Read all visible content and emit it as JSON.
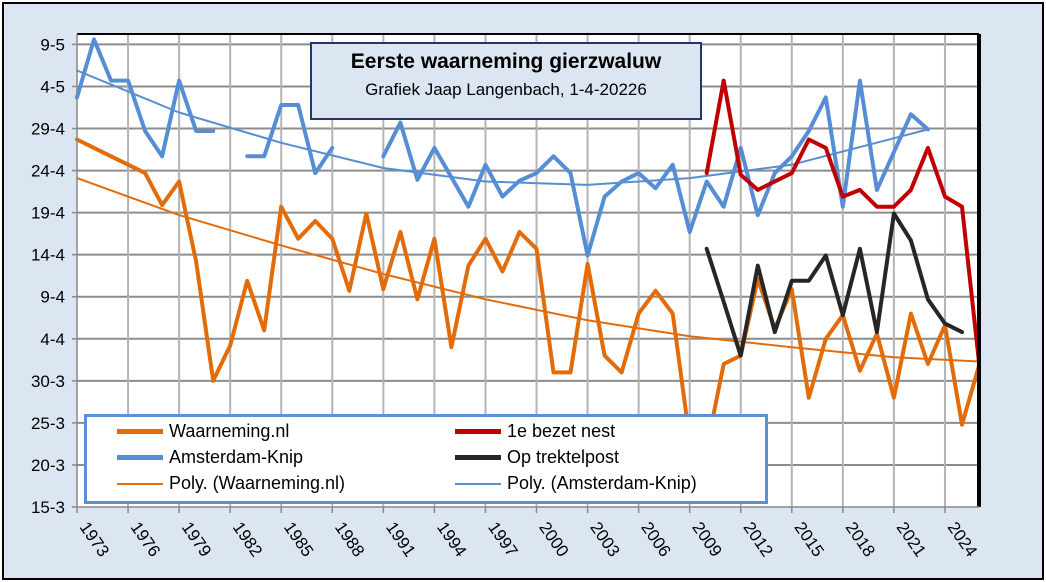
{
  "chart_data": {
    "type": "line",
    "title": "Eerste waarneming gierzwaluw",
    "subtitle": "Grafiek Jaap Langenbach, 1-4-20226",
    "xlabel": "",
    "ylabel": "",
    "y_unit": "days after 15-3",
    "y_tick_labels": [
      "15-3",
      "20-3",
      "25-3",
      "30-3",
      "4-4",
      "9-4",
      "14-4",
      "19-4",
      "24-4",
      "29-4",
      "4-5",
      "9-5"
    ],
    "y_tick_values": [
      0,
      5,
      10,
      15,
      20,
      25,
      30,
      35,
      40,
      45,
      50,
      55
    ],
    "ylim": [
      0,
      56
    ],
    "x_tick_labels": [
      "1973",
      "1976",
      "1979",
      "1982",
      "1985",
      "1988",
      "1991",
      "1994",
      "1997",
      "2000",
      "2003",
      "2006",
      "2009",
      "2012",
      "2015",
      "2018",
      "2021",
      "2024"
    ],
    "x_tick_values": [
      1973,
      1976,
      1979,
      1982,
      1985,
      1988,
      1991,
      1994,
      1997,
      2000,
      2003,
      2006,
      2009,
      2012,
      2015,
      2018,
      2021,
      2024
    ],
    "xlim": [
      1973,
      2026
    ],
    "grid": true,
    "legend_position": "bottom-left",
    "series": [
      {
        "name": "Waarneming.nl",
        "color": "#e36c0a",
        "width": 4,
        "x": [
          1973,
          1974,
          1975,
          1976,
          1977,
          1978,
          1979,
          1980,
          1981,
          1982,
          1983,
          1984,
          1985,
          1986,
          1987,
          1988,
          1989,
          1990,
          1991,
          1992,
          1993,
          1994,
          1995,
          1996,
          1997,
          1998,
          1999,
          2000,
          2001,
          2002,
          2003,
          2004,
          2005,
          2006,
          2007,
          2008,
          2009,
          2010,
          2011,
          2012,
          2013,
          2014,
          2015,
          2016,
          2017,
          2018,
          2019,
          2020,
          2021,
          2022,
          2023,
          2024,
          2025,
          2026
        ],
        "values": [
          43.7,
          42.7,
          41.7,
          40.7,
          39.7,
          35.9,
          38.7,
          29.2,
          15.0,
          19.2,
          26.9,
          21.0,
          35.7,
          31.9,
          34.0,
          31.9,
          25.7,
          34.9,
          25.9,
          32.7,
          24.7,
          31.9,
          19.0,
          28.7,
          31.9,
          28.0,
          32.7,
          30.7,
          16.0,
          16.0,
          28.9,
          18.0,
          16.0,
          23.0,
          25.7,
          23.0,
          8,
          7,
          17.0,
          18.0,
          27.1,
          21.2,
          25.9,
          13.0,
          20.0,
          22.8,
          16.2,
          20.6,
          13.0,
          23.0,
          17.0,
          21.6,
          9.8,
          16.8
        ]
      },
      {
        "name": "1e bezet nest",
        "color": "#c00000",
        "width": 4,
        "x": [
          2010,
          2011,
          2012,
          2013,
          2014,
          2015,
          2016,
          2017,
          2018,
          2019,
          2020,
          2021,
          2022,
          2023,
          2024,
          2025,
          2026
        ],
        "values": [
          39.7,
          50.7,
          39.5,
          37.7,
          38.7,
          39.7,
          43.7,
          42.7,
          36.9,
          37.7,
          35.7,
          35.7,
          37.7,
          42.7,
          36.9,
          35.7,
          17.2
        ]
      },
      {
        "name": "Amsterdam-Knip",
        "color": "#558ed5",
        "width": 4,
        "x": [
          1973,
          1974,
          1975,
          1976,
          1977,
          1978,
          1979,
          1980,
          1981,
          1982,
          1983,
          1984,
          1985,
          1986,
          1987,
          1988,
          1989,
          1990,
          1991,
          1992,
          1993,
          1994,
          1995,
          1996,
          1997,
          1998,
          1999,
          2000,
          2001,
          2002,
          2003,
          2004,
          2005,
          2006,
          2007,
          2008,
          2009,
          2010,
          2011,
          2012,
          2013,
          2014,
          2015,
          2016,
          2017,
          2018,
          2019,
          2020,
          2021,
          2022,
          2023
        ],
        "values": [
          48.7,
          55.6,
          50.7,
          50.7,
          44.7,
          41.7,
          50.7,
          44.7,
          44.7,
          null,
          41.7,
          41.7,
          47.8,
          47.8,
          39.7,
          42.7,
          null,
          null,
          41.7,
          45.7,
          38.9,
          42.7,
          39.2,
          35.7,
          40.7,
          36.9,
          38.8,
          39.7,
          41.7,
          39.7,
          29.9,
          36.9,
          38.7,
          39.7,
          37.9,
          40.7,
          32.7,
          38.7,
          35.7,
          42.7,
          34.7,
          39.7,
          41.7,
          44.7,
          48.7,
          35.7,
          50.7,
          37.7,
          42.2,
          46.7,
          44.9
        ]
      },
      {
        "name": "Op trektelpost",
        "color": "#262626",
        "width": 4,
        "x": [
          2010,
          2011,
          2012,
          2013,
          2014,
          2015,
          2016,
          2017,
          2018,
          2019,
          2020,
          2021,
          2022,
          2023,
          2024,
          2025
        ],
        "values": [
          30.7,
          24.4,
          18.0,
          28.7,
          20.8,
          26.9,
          26.9,
          29.9,
          22.8,
          30.7,
          20.8,
          34.9,
          31.7,
          24.7,
          21.8,
          20.8
        ]
      },
      {
        "name": "Poly. (Waarneming.nl)",
        "color": "#e36c0a",
        "width": 2,
        "trendline": true,
        "x": [
          1973,
          1979,
          1985,
          1991,
          1997,
          2003,
          2009,
          2015,
          2021,
          2026
        ],
        "values": [
          39.1,
          34.7,
          31.1,
          27.7,
          24.7,
          22.2,
          20.3,
          19.0,
          17.8,
          17.3
        ]
      },
      {
        "name": "Poly. (Amsterdam-Knip)",
        "color": "#558ed5",
        "width": 2,
        "trendline": true,
        "x": [
          1973,
          1979,
          1985,
          1991,
          1997,
          2003,
          2009,
          2015,
          2023
        ],
        "values": [
          51.9,
          46.9,
          43.3,
          40.3,
          38.7,
          38.3,
          39.1,
          40.7,
          44.9
        ]
      }
    ]
  }
}
